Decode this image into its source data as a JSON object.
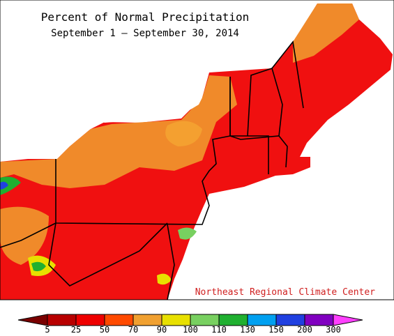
{
  "title": "Percent of Normal Precipitation",
  "subtitle": "September 1 — September 30, 2014",
  "credit": "Northeast Regional Climate Center",
  "legend": {
    "ticks": [
      5,
      25,
      50,
      70,
      90,
      100,
      110,
      130,
      150,
      200,
      300
    ],
    "colors": [
      "#7a0000",
      "#b80000",
      "#ee0000",
      "#ff4a00",
      "#f0a030",
      "#e8e000",
      "#78d060",
      "#20b030",
      "#00a0f0",
      "#2040e0",
      "#8000c0",
      "#ff40ff"
    ]
  }
}
